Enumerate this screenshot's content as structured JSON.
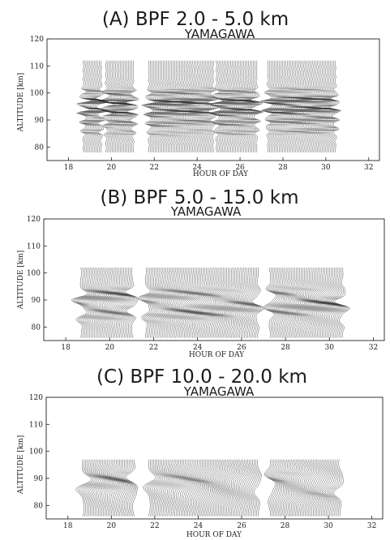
{
  "chart_data": [
    {
      "type": "line",
      "title": "(A) BPF 2.0 - 5.0 km",
      "subtitle": "YAMAGAWA",
      "xlabel": "HOUR OF DAY",
      "ylabel": "ALTITUDE [km]",
      "xlim": [
        17,
        32.5
      ],
      "ylim": [
        75,
        120
      ],
      "xticks": [
        18,
        20,
        22,
        24,
        26,
        28,
        30,
        32
      ],
      "yticks": [
        80,
        90,
        100,
        110,
        120
      ],
      "grid": false,
      "data_altitude_range": [
        78,
        112
      ],
      "observation_blocks": [
        [
          18.7,
          19.55
        ],
        [
          19.75,
          21.05
        ],
        [
          21.75,
          24.8
        ],
        [
          24.9,
          26.8
        ],
        [
          27.3,
          30.45
        ]
      ],
      "series": [
        {
          "time_range": [
            18.7,
            30.45
          ],
          "enhanced_wave_altitudes_km": [
            92,
            95,
            96,
            99,
            87
          ]
        }
      ]
    },
    {
      "type": "line",
      "title": "(B) BPF 5.0 - 15.0 km",
      "subtitle": "YAMAGAWA",
      "xlabel": "HOUR OF DAY",
      "ylabel": "ALTITUDE [km]",
      "xlim": [
        17,
        32.5
      ],
      "ylim": [
        75,
        120
      ],
      "xticks": [
        18,
        20,
        22,
        24,
        26,
        28,
        30,
        32
      ],
      "yticks": [
        80,
        90,
        100,
        110,
        120
      ],
      "grid": false,
      "data_altitude_range": [
        76,
        102
      ],
      "observation_blocks": [
        [
          18.7,
          21.05
        ],
        [
          21.65,
          26.8
        ],
        [
          27.3,
          30.6
        ]
      ],
      "series": [
        {
          "time_range": [
            18.7,
            30.6
          ],
          "enhanced_wave_altitudes_km": [
            88,
            90,
            92,
            84
          ]
        }
      ]
    },
    {
      "type": "line",
      "title": "(C) BPF 10.0 - 20.0 km",
      "subtitle": "YAMAGAWA",
      "xlabel": "HOUR OF DAY",
      "ylabel": "ALTITUDE [km]",
      "xlim": [
        17,
        32.5
      ],
      "ylim": [
        75,
        120
      ],
      "xticks": [
        18,
        20,
        22,
        24,
        26,
        28,
        30,
        32
      ],
      "yticks": [
        80,
        90,
        100,
        110,
        120
      ],
      "grid": false,
      "data_altitude_range": [
        76,
        97
      ],
      "observation_blocks": [
        [
          18.7,
          21.05
        ],
        [
          21.75,
          26.8
        ],
        [
          27.3,
          30.55
        ]
      ],
      "series": [
        {
          "time_range": [
            18.7,
            30.55
          ],
          "enhanced_wave_altitudes_km": [
            85,
            88,
            90
          ]
        }
      ]
    }
  ]
}
